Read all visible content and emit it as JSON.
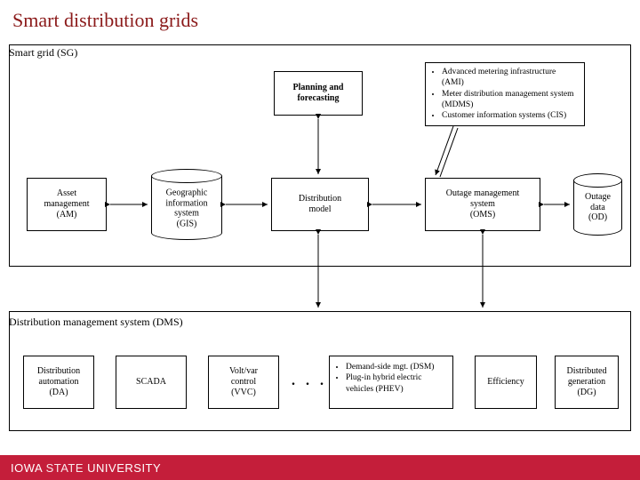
{
  "title": "Smart distribution grids",
  "topContainer": {
    "label": "Smart grid (SG)"
  },
  "boxes": {
    "planning": "Planning and\nforecasting",
    "asset": "Asset\nmanagement\n(AM)",
    "gis": "Geographic\ninformation\nsystem\n(GIS)",
    "distModel": "Distribution\nmodel",
    "oms": "Outage management\nsystem\n(OMS)",
    "od": "Outage\ndata\n(OD)",
    "dms": "Distribution management system (DMS)",
    "da": "Distribution\nautomation\n(DA)",
    "scada": "SCADA",
    "vvc": "Volt/var\ncontrol\n(VVC)",
    "eff": "Efficiency",
    "dg": "Distributed\ngeneration\n(DG)"
  },
  "bulletTop": [
    "Advanced metering infrastructure (AMI)",
    "Meter distribution management system (MDMS)",
    "Customer information systems (CIS)"
  ],
  "bulletBottom": [
    "Demand-side mgt. (DSM)",
    "Plug-in hybrid electric vehicles (PHEV)"
  ],
  "footer": {
    "iowa": "IOWA ",
    "state": "STATE ",
    "university": "UNIVERSITY"
  },
  "colors": {
    "title": "#8b1a1a",
    "footer": "#c41e3a",
    "line": "#000000"
  }
}
